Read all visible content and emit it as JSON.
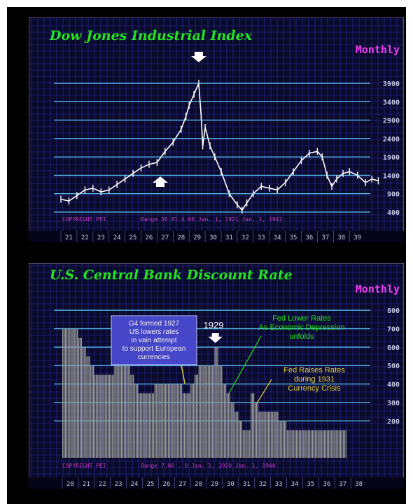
{
  "colors": {
    "background": "#000000",
    "plot_bg": "#0a0a2a",
    "grid": "#3b3bd6",
    "hline": "#55b6e6",
    "title": "#22e51e",
    "subtitle": "#f23cf2",
    "axis_label": "#c8c8e6",
    "copyright": "#c23cc2",
    "bar": "#9a9a9a",
    "note_box": "#4646c8"
  },
  "dow": {
    "title": "Dow Jones Industrial Index",
    "subtitle": "Monthly",
    "copyright": "COPYRIGHT PEI",
    "range_text": "Range  38.81  4.06 Jan.  1, 1921 Jan.  1, 1941",
    "arrows": [
      "arrow-down-icon",
      "arrow-up-icon"
    ]
  },
  "rate": {
    "title": "U.S. Central Bank Discount Rate",
    "subtitle": "Monthly",
    "copyright": "COPYRIGHT PEI",
    "range_text": "Range  7.00 . 0 Jan.  1, 1920 Jan.  1, 1940",
    "box_note": [
      "G4 formed 1927",
      "US lowers rates",
      "in vain attempt",
      "to support European",
      "currencies"
    ],
    "year_label": "1929",
    "note_lower": [
      "Fed Lower Rates",
      "As Economic Depression",
      "unfolds"
    ],
    "note_raise": [
      "Fed Raises Rates",
      "during 1931",
      "Currency Crisis"
    ],
    "arrows": [
      "arrow-down-icon"
    ]
  },
  "chart_data": [
    {
      "type": "line",
      "title": "Dow Jones Industrial Index",
      "subtitle": "Monthly",
      "x_label_values": [
        "21",
        "22",
        "23",
        "24",
        "25",
        "26",
        "27",
        "28",
        "29",
        "30",
        "31",
        "32",
        "33",
        "34",
        "35",
        "36",
        "37",
        "38",
        "39"
      ],
      "y_tick_values": [
        "3900",
        "3400",
        "2900",
        "2400",
        "1900",
        "1400",
        "900",
        "400"
      ],
      "ylim": [
        0,
        4300
      ],
      "grid": true,
      "series": [
        {
          "x": [
            1921.0,
            1921.5,
            1922.0,
            1922.5,
            1923.0,
            1923.5,
            1924.0,
            1924.5,
            1925.0,
            1925.5,
            1926.0,
            1926.5,
            1927.0,
            1927.5,
            1928.0,
            1928.5,
            1928.8,
            1929.0,
            1929.3,
            1929.6,
            1929.75,
            1929.85,
            1930.0,
            1930.3,
            1930.6,
            1931.0,
            1931.5,
            1932.0,
            1932.3,
            1932.6,
            1933.0,
            1933.5,
            1934.0,
            1934.5,
            1935.0,
            1935.5,
            1936.0,
            1936.5,
            1937.0,
            1937.3,
            1937.6,
            1937.9,
            1938.2,
            1938.6,
            1939.0,
            1939.5,
            1940.0,
            1940.4,
            1940.8
          ],
          "y": [
            750,
            700,
            850,
            1000,
            1050,
            950,
            1000,
            1150,
            1300,
            1450,
            1600,
            1700,
            1750,
            2050,
            2300,
            2650,
            3000,
            3300,
            3600,
            3900,
            3000,
            2200,
            2700,
            2200,
            1900,
            1500,
            900,
            600,
            450,
            650,
            900,
            1100,
            1050,
            1000,
            1200,
            1500,
            1800,
            2000,
            2050,
            1900,
            1400,
            1100,
            1300,
            1450,
            1500,
            1400,
            1200,
            1300,
            1250
          ]
        }
      ]
    },
    {
      "type": "bar",
      "title": "U.S. Central Bank Discount Rate",
      "subtitle": "Monthly",
      "x_label_values": [
        "20",
        "21",
        "22",
        "23",
        "24",
        "25",
        "26",
        "27",
        "28",
        "29",
        "30",
        "31",
        "32",
        "33",
        "34",
        "35",
        "36",
        "37",
        "38"
      ],
      "y_tick_values": [
        "800",
        "700",
        "600",
        "500",
        "400",
        "300",
        "200"
      ],
      "ylim": [
        0,
        8.5
      ],
      "grid": true,
      "series": [
        {
          "x": [
            1920.0,
            1920.25,
            1920.5,
            1920.75,
            1921.0,
            1921.25,
            1921.5,
            1921.75,
            1922.0,
            1922.25,
            1922.5,
            1922.75,
            1923.0,
            1923.25,
            1923.5,
            1923.75,
            1924.0,
            1924.25,
            1924.5,
            1924.75,
            1925.0,
            1925.25,
            1925.5,
            1925.75,
            1926.0,
            1926.25,
            1926.5,
            1926.75,
            1927.0,
            1927.25,
            1927.5,
            1927.75,
            1928.0,
            1928.25,
            1928.5,
            1928.75,
            1929.0,
            1929.25,
            1929.5,
            1929.75,
            1930.0,
            1930.25,
            1930.5,
            1930.75,
            1931.0,
            1931.25,
            1931.5,
            1931.75,
            1932.0,
            1932.25,
            1932.5,
            1932.75,
            1933.0,
            1933.25,
            1933.5,
            1933.75,
            1934.0,
            1934.25,
            1934.5,
            1934.75,
            1935.0,
            1935.25,
            1935.5,
            1935.75,
            1936.0,
            1936.25,
            1936.5,
            1936.75,
            1937.0,
            1937.25,
            1937.5
          ],
          "y": [
            7.0,
            7.0,
            7.0,
            7.0,
            6.5,
            6.0,
            5.5,
            5.0,
            4.5,
            4.5,
            4.5,
            4.5,
            4.5,
            5.0,
            5.0,
            5.0,
            5.0,
            4.5,
            4.0,
            3.5,
            3.5,
            3.5,
            3.5,
            4.0,
            4.0,
            4.0,
            4.0,
            4.0,
            4.0,
            4.0,
            3.5,
            3.5,
            4.0,
            4.5,
            5.0,
            5.0,
            5.0,
            5.0,
            6.0,
            5.0,
            4.0,
            3.5,
            3.0,
            2.5,
            2.0,
            1.5,
            1.5,
            3.5,
            3.0,
            2.5,
            2.5,
            2.5,
            2.5,
            2.5,
            2.0,
            2.0,
            1.5,
            1.5,
            1.5,
            1.5,
            1.5,
            1.5,
            1.5,
            1.5,
            1.5,
            1.5,
            1.5,
            1.5,
            1.5,
            1.5,
            1.5
          ]
        }
      ]
    }
  ]
}
